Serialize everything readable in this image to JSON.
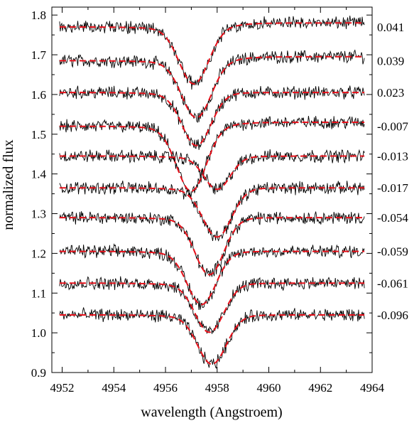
{
  "chart_data": {
    "type": "line",
    "title": "",
    "xlabel": "wavelength (Angstroem)",
    "ylabel": "normalized flux",
    "xlim": [
      4951.6,
      4964.0
    ],
    "ylim": [
      0.9,
      1.82
    ],
    "xticks": [
      4952,
      4954,
      4956,
      4958,
      4960,
      4962,
      4964
    ],
    "yticks": [
      0.9,
      1.0,
      1.1,
      1.2,
      1.3,
      1.4,
      1.5,
      1.6,
      1.7,
      1.8
    ],
    "xtick_labels": [
      "4952",
      "4954",
      "4956",
      "4958",
      "4960",
      "4962",
      "4964"
    ],
    "ytick_labels": [
      "0.9",
      "1.0",
      "1.1",
      "1.2",
      "1.3",
      "1.4",
      "1.5",
      "1.6",
      "1.7",
      "1.8"
    ],
    "grid": false,
    "legend": "none",
    "colors": {
      "observed": "#000000",
      "model": "#e8101a"
    },
    "series": [
      {
        "label": "0.041",
        "continuum": 1.77,
        "line_center": 4957.1,
        "depth": 0.14,
        "width": 0.8,
        "right_level_change": 0.01
      },
      {
        "label": "0.039",
        "continuum": 1.685,
        "line_center": 4957.2,
        "depth": 0.14,
        "width": 0.8,
        "right_level_change": 0.01
      },
      {
        "label": "0.023",
        "continuum": 1.605,
        "line_center": 4957.2,
        "depth": 0.13,
        "width": 0.78,
        "right_level_change": 0.0
      },
      {
        "label": "-0.007",
        "continuum": 1.52,
        "line_center": 4957.0,
        "depth": 0.16,
        "width": 0.8,
        "right_level_change": 0.01
      },
      {
        "label": "-0.013",
        "continuum": 1.445,
        "line_center": 4958.0,
        "depth": 0.08,
        "width": 0.7,
        "right_level_change": 0.0
      },
      {
        "label": "-0.017",
        "continuum": 1.365,
        "line_center": 4958.0,
        "depth": 0.12,
        "width": 0.78,
        "right_level_change": 0.0
      },
      {
        "label": "-0.054",
        "continuum": 1.29,
        "line_center": 4957.7,
        "depth": 0.14,
        "width": 0.78,
        "right_level_change": 0.0
      },
      {
        "label": "-0.059",
        "continuum": 1.205,
        "line_center": 4957.4,
        "depth": 0.13,
        "width": 0.78,
        "right_level_change": 0.0
      },
      {
        "label": "-0.061",
        "continuum": 1.125,
        "line_center": 4957.7,
        "depth": 0.12,
        "width": 0.78,
        "right_level_change": 0.0
      },
      {
        "label": "-0.096",
        "continuum": 1.045,
        "line_center": 4957.8,
        "depth": 0.12,
        "width": 0.78,
        "right_level_change": 0.0
      }
    ]
  }
}
